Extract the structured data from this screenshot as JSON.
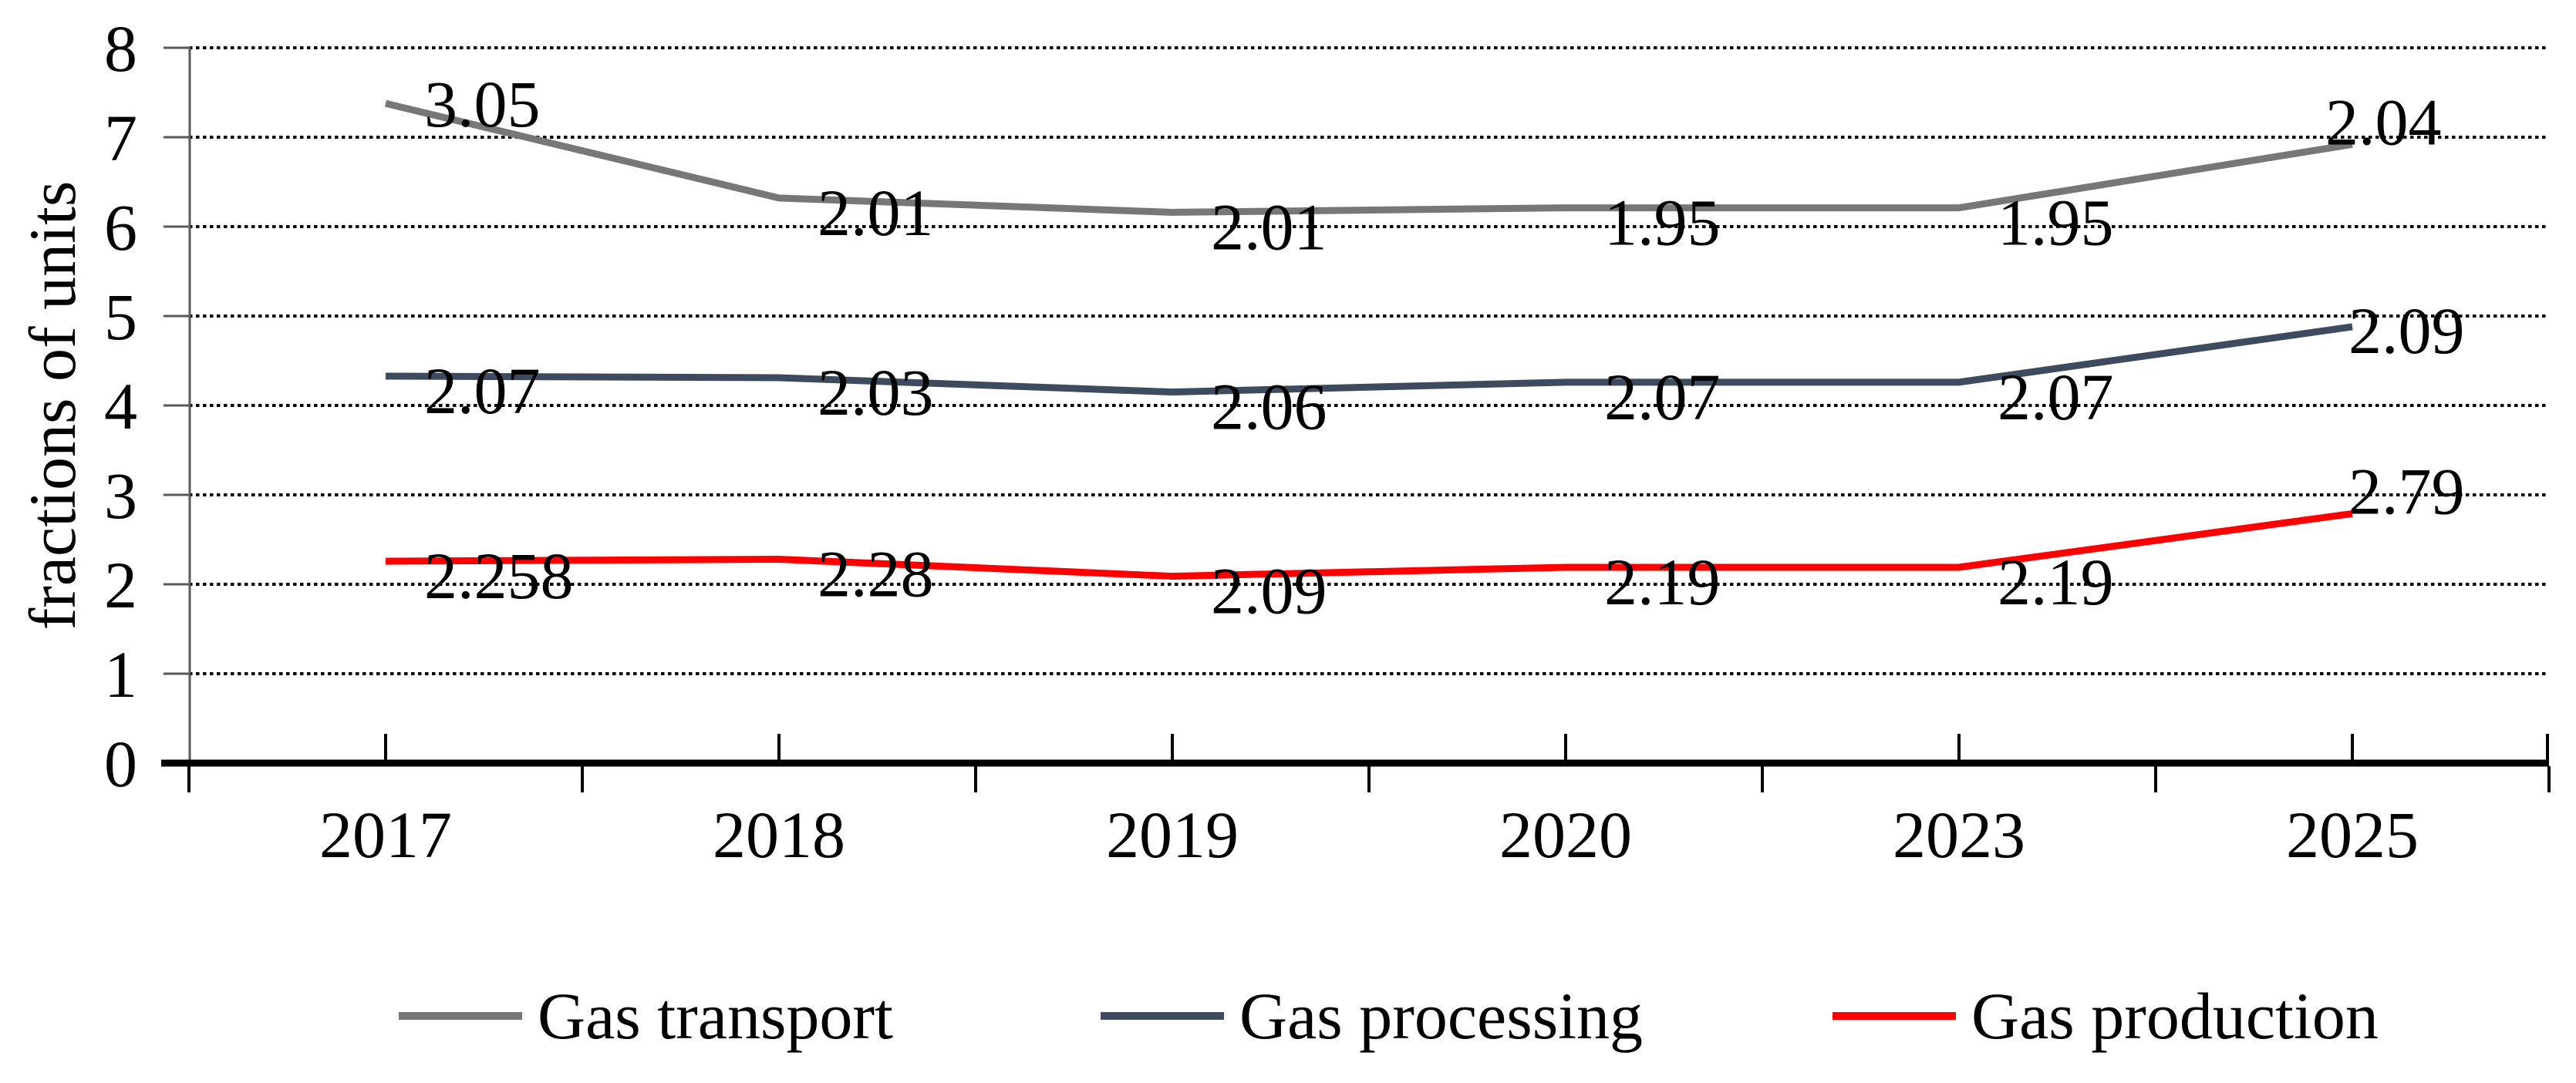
{
  "chart_data": {
    "type": "line",
    "stacked": true,
    "title": "",
    "ylabel": "fractions of units",
    "ylim": [
      0,
      8
    ],
    "y_tick_step": 1,
    "y_tick_labels": [
      "0",
      "1",
      "2",
      "3",
      "4",
      "5",
      "6",
      "7",
      "8"
    ],
    "grid": "horizontal-dotted-black",
    "legend_position": "bottom",
    "categories": [
      "2017",
      "2018",
      "2019",
      "2020",
      "2023",
      "2025"
    ],
    "series": [
      {
        "name": "Gas transport",
        "color": "#777777",
        "values": [
          3.05,
          2.01,
          2.01,
          1.95,
          1.95,
          2.04
        ],
        "data_labels": [
          "3.05",
          "2.01",
          "2.01",
          "1.95",
          "1.95",
          "2.04"
        ]
      },
      {
        "name": "Gas processing",
        "color": "#3e4b5f",
        "values": [
          2.07,
          2.03,
          2.06,
          2.07,
          2.07,
          2.09
        ],
        "data_labels": [
          "2.07",
          "2.03",
          "2.06",
          "2.07",
          "2.07",
          "2.09"
        ]
      },
      {
        "name": "Gas production",
        "color": "#ff0000",
        "values": [
          2.258,
          2.28,
          2.09,
          2.19,
          2.19,
          2.79
        ],
        "data_labels": [
          "2.258",
          "2.28",
          "2.09",
          "2.19",
          "2.19",
          "2.79"
        ]
      }
    ],
    "stack_order_bottom_to_top": [
      "Gas production",
      "Gas processing",
      "Gas transport"
    ],
    "axis_colors": {
      "y_axis_line": "#595959",
      "x_axis_line": "#000000",
      "gridline": "#000000"
    }
  }
}
